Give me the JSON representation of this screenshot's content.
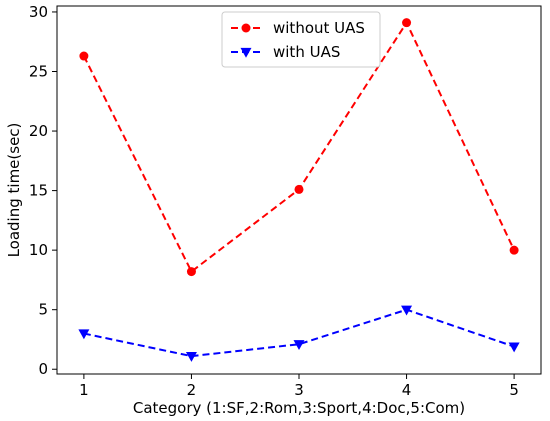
{
  "chart_data": {
    "type": "line",
    "x": [
      1,
      2,
      3,
      4,
      5
    ],
    "xticks": [
      "1",
      "2",
      "3",
      "4",
      "5"
    ],
    "yticks": [
      "0",
      "5",
      "10",
      "15",
      "20",
      "25",
      "30"
    ],
    "xlim": [
      0.75,
      5.25
    ],
    "ylim": [
      -0.4,
      30.5
    ],
    "xlabel": "Category (1:SF,2:Rom,3:Sport,4:Doc,5:Com)",
    "ylabel": "Loading time(sec)",
    "grid": false,
    "legend_position": "top-center",
    "series": [
      {
        "name": "without UAS",
        "values": [
          26.3,
          8.2,
          15.1,
          29.1,
          10.0
        ],
        "color": "#ff0000",
        "marker": "circle",
        "line_style": "dashed"
      },
      {
        "name": "with UAS",
        "values": [
          3.0,
          1.1,
          2.1,
          5.0,
          1.9
        ],
        "color": "#0000ff",
        "marker": "triangle-down",
        "line_style": "dashed"
      }
    ]
  }
}
